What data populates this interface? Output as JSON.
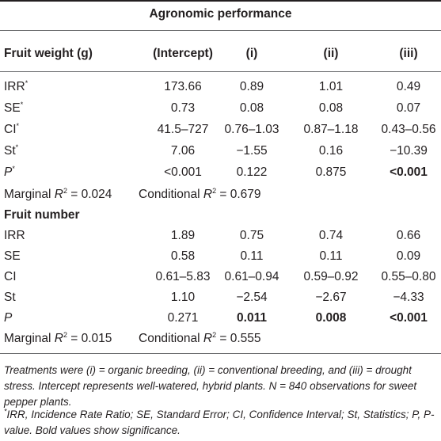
{
  "title": "Agronomic performance",
  "header": {
    "label": "Fruit weight (g)",
    "cols": [
      "(Intercept)",
      "(i)",
      "(ii)",
      "(iii)"
    ]
  },
  "weight_rows": [
    {
      "label": "IRR",
      "sup": "*",
      "cells": [
        "173.66",
        "0.89",
        "1.01",
        "0.49"
      ],
      "bold": [
        false,
        false,
        false,
        false
      ]
    },
    {
      "label": "SE",
      "sup": "*",
      "cells": [
        "0.73",
        "0.08",
        "0.08",
        "0.07"
      ],
      "bold": [
        false,
        false,
        false,
        false
      ]
    },
    {
      "label": "CI",
      "sup": "*",
      "cells": [
        "41.5–727",
        "0.76–1.03",
        "0.87–1.18",
        "0.43–0.56"
      ],
      "bold": [
        false,
        false,
        false,
        false
      ]
    },
    {
      "label": "St",
      "sup": "*",
      "cells": [
        "7.06",
        "−1.55",
        "0.16",
        "−10.39"
      ],
      "bold": [
        false,
        false,
        false,
        false
      ]
    },
    {
      "label": "P",
      "sup": "*",
      "italic": true,
      "cells": [
        "<0.001",
        "0.122",
        "0.875",
        "<0.001"
      ],
      "bold": [
        false,
        false,
        false,
        true
      ]
    }
  ],
  "weight_r2": {
    "marginal": "Marginal R² = 0.024",
    "conditional": "Conditional R² = 0.679"
  },
  "number_section": "Fruit number",
  "number_rows": [
    {
      "label": "IRR",
      "cells": [
        "1.89",
        "0.75",
        "0.74",
        "0.66"
      ],
      "bold": [
        false,
        false,
        false,
        false
      ]
    },
    {
      "label": "SE",
      "cells": [
        "0.58",
        "0.11",
        "0.11",
        "0.09"
      ],
      "bold": [
        false,
        false,
        false,
        false
      ]
    },
    {
      "label": "CI",
      "cells": [
        "0.61–5.83",
        "0.61–0.94",
        "0.59–0.92",
        "0.55–0.80"
      ],
      "bold": [
        false,
        false,
        false,
        false
      ]
    },
    {
      "label": "St",
      "cells": [
        "1.10",
        "−2.54",
        "−2.67",
        "−4.33"
      ],
      "bold": [
        false,
        false,
        false,
        false
      ]
    },
    {
      "label": "P",
      "italic": true,
      "cells": [
        "0.271",
        "0.011",
        "0.008",
        "<0.001"
      ],
      "bold": [
        false,
        true,
        true,
        true
      ]
    }
  ],
  "number_r2": {
    "marginal": "Marginal R² = 0.015",
    "conditional": "Conditional R² = 0.555"
  },
  "footnote1": "Treatments were (i) = organic breeding, (ii) = conventional breeding, and (iii) = drought stress. Intercept represents well-watered, hybrid plants. N = 840 observations for sweet pepper plants.",
  "footnote2": "*IRR, Incidence Rate Ratio; SE, Standard Error; CI, Confidence Interval; St, Statistics; P, P-value. Bold values show significance."
}
